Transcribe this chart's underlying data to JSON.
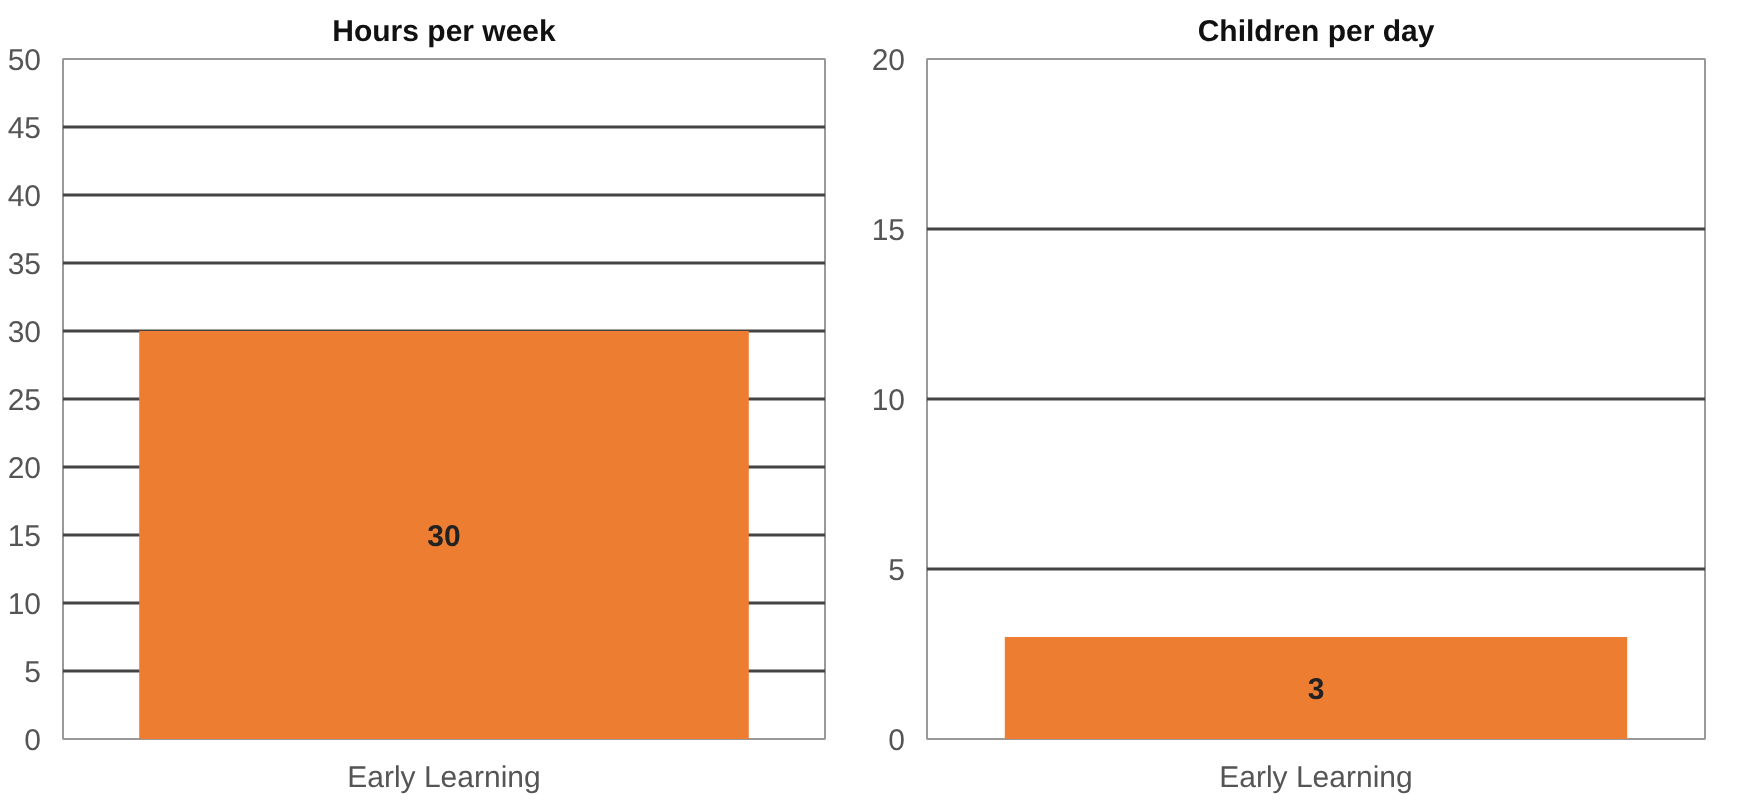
{
  "chart_data": [
    {
      "type": "bar",
      "title": "Hours per week",
      "categories": [
        "Early Learning"
      ],
      "values": [
        30
      ],
      "color": "#ed7d31",
      "ylim": [
        0,
        50
      ],
      "yticks": [
        0,
        5,
        10,
        15,
        20,
        25,
        30,
        35,
        40,
        45,
        50
      ],
      "grid": "y",
      "data_labels": true
    },
    {
      "type": "bar",
      "title": "Children per day",
      "categories": [
        "Early Learning"
      ],
      "values": [
        3
      ],
      "color": "#ed7d31",
      "ylim": [
        0,
        20
      ],
      "yticks": [
        0,
        5,
        10,
        15,
        20
      ],
      "grid": "y",
      "data_labels": true
    }
  ]
}
